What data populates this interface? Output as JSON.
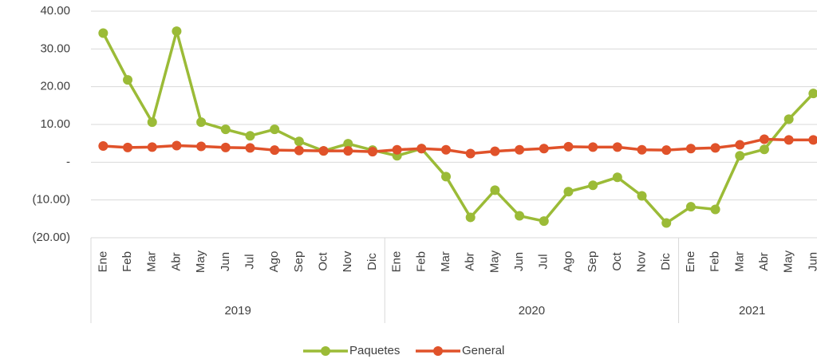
{
  "chart_data": {
    "type": "line",
    "categories": [
      "Ene",
      "Feb",
      "Mar",
      "Abr",
      "May",
      "Jun",
      "Jul",
      "Ago",
      "Sep",
      "Oct",
      "Nov",
      "Dic",
      "Ene",
      "Feb",
      "Mar",
      "Abr",
      "May",
      "Jun",
      "Jul",
      "Ago",
      "Sep",
      "Oct",
      "Nov",
      "Dic",
      "Ene",
      "Feb",
      "Mar",
      "Abr",
      "May",
      "Jun"
    ],
    "groups": [
      {
        "label": "2019",
        "size": 12
      },
      {
        "label": "2020",
        "size": 12
      },
      {
        "label": "2021",
        "size": 6
      }
    ],
    "series": [
      {
        "name": "Paquetes",
        "color": "#9bbb37",
        "values": [
          34.2,
          21.8,
          10.6,
          34.7,
          10.6,
          8.7,
          7.0,
          8.7,
          5.5,
          3.0,
          4.9,
          3.2,
          1.7,
          3.6,
          -3.8,
          -14.6,
          -7.4,
          -14.2,
          -15.6,
          -7.8,
          -6.1,
          -4.0,
          -8.9,
          -16.1,
          -11.8,
          -12.5,
          1.7,
          3.4,
          11.4,
          18.2
        ]
      },
      {
        "name": "General",
        "color": "#e0522a",
        "values": [
          4.3,
          3.9,
          4.0,
          4.4,
          4.2,
          3.9,
          3.8,
          3.2,
          3.1,
          3.0,
          3.0,
          2.8,
          3.3,
          3.6,
          3.3,
          2.3,
          2.9,
          3.3,
          3.6,
          4.1,
          4.0,
          4.0,
          3.3,
          3.2,
          3.6,
          3.8,
          4.6,
          6.1,
          5.9,
          5.9
        ]
      }
    ],
    "ylim": [
      -20,
      40
    ],
    "yticks": [
      {
        "value": -20,
        "label": "(20.00)"
      },
      {
        "value": -10,
        "label": "(10.00)"
      },
      {
        "value": 0,
        "label": "-"
      },
      {
        "value": 10,
        "label": "10.00"
      },
      {
        "value": 20,
        "label": "20.00"
      },
      {
        "value": 30,
        "label": "30.00"
      },
      {
        "value": 40,
        "label": "40.00"
      }
    ],
    "grid": true,
    "legend": "bottom"
  }
}
